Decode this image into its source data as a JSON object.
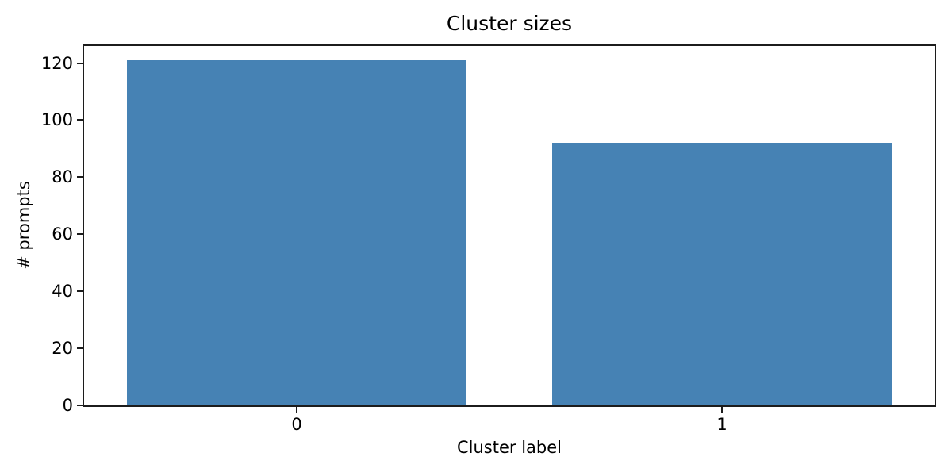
{
  "chart_data": {
    "type": "bar",
    "title": "Cluster sizes",
    "xlabel": "Cluster label",
    "ylabel": "# prompts",
    "categories": [
      "0",
      "1"
    ],
    "values": [
      121,
      92
    ],
    "yticks": [
      0,
      20,
      40,
      60,
      80,
      100,
      120
    ],
    "ylim": [
      0,
      126
    ],
    "xlim": [
      -0.5,
      1.5
    ],
    "bar_width_units": 0.8,
    "grid": false,
    "legend": null,
    "colors": {
      "bar": "#4682B4",
      "axis": "#1c1c1c",
      "text": "#000000",
      "background": "#ffffff"
    }
  }
}
